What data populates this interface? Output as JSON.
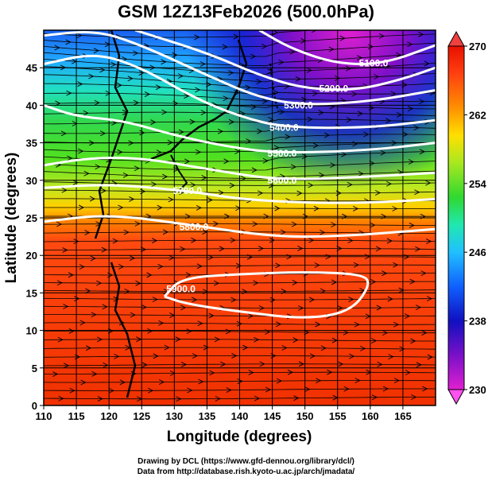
{
  "title": "GSM 12Z13Feb2026 (500.0hPa)",
  "x_axis": {
    "label": "Longitude (degrees)",
    "range": [
      110,
      170
    ],
    "ticks": [
      "110",
      "115",
      "120",
      "125",
      "130",
      "135",
      "140",
      "145",
      "150",
      "155",
      "160",
      "165"
    ]
  },
  "y_axis": {
    "label": "Latitude  (degrees)",
    "range": [
      0,
      50
    ],
    "ticks": [
      "0",
      "5",
      "10",
      "15",
      "20",
      "25",
      "30",
      "35",
      "40",
      "45"
    ]
  },
  "colorbar": {
    "range": [
      230,
      270
    ],
    "ticks": [
      "270",
      "262",
      "254",
      "246",
      "238",
      "230"
    ],
    "colors": [
      "#e020d0",
      "#7a10c8",
      "#1010c0",
      "#1060ff",
      "#20c0ff",
      "#20e8b0",
      "#30d830",
      "#a8e820",
      "#ffe000",
      "#ff9000",
      "#ff4010",
      "#e81000"
    ]
  },
  "contours": [
    {
      "level": 5100,
      "label": "5100.0",
      "label_at": [
        160.5,
        45.6
      ],
      "points": [
        [
          143,
          50
        ],
        [
          148,
          47.5
        ],
        [
          155,
          45.5
        ],
        [
          162,
          45.5
        ],
        [
          170,
          48
        ]
      ]
    },
    {
      "level": 5200,
      "label": "5200.0",
      "label_at": [
        154.4,
        42.2
      ],
      "points": [
        [
          124,
          50
        ],
        [
          135,
          47
        ],
        [
          143,
          44
        ],
        [
          150,
          42.2
        ],
        [
          158,
          42
        ],
        [
          165,
          43.5
        ],
        [
          170,
          45
        ]
      ]
    },
    {
      "level": 5300,
      "label": "5300.0",
      "label_at": [
        149,
        40
      ],
      "points": [
        [
          110,
          49.3
        ],
        [
          118,
          50
        ],
        [
          125,
          48
        ],
        [
          135,
          44
        ],
        [
          143,
          41
        ],
        [
          150,
          40
        ],
        [
          160,
          40.5
        ],
        [
          170,
          42
        ]
      ]
    },
    {
      "level": 5400,
      "label": "5400.0",
      "label_at": [
        146.8,
        37
      ],
      "points": [
        [
          110,
          45.5
        ],
        [
          118,
          47
        ],
        [
          125,
          45
        ],
        [
          133,
          41
        ],
        [
          140,
          38.5
        ],
        [
          147,
          37
        ],
        [
          160,
          37
        ],
        [
          170,
          38
        ]
      ]
    },
    {
      "level": 5500,
      "label": "5500.0",
      "label_at": [
        146.5,
        33.6
      ],
      "points": [
        [
          110,
          40
        ],
        [
          115,
          38.5
        ],
        [
          122,
          38
        ],
        [
          130,
          36
        ],
        [
          138,
          34.5
        ],
        [
          146,
          33.6
        ],
        [
          160,
          34
        ],
        [
          170,
          35
        ]
      ]
    },
    {
      "level": 5600,
      "label": "5600.0",
      "label_at": [
        146.5,
        30
      ],
      "points": [
        [
          110,
          32
        ],
        [
          117,
          33
        ],
        [
          125,
          33
        ],
        [
          135,
          31.5
        ],
        [
          146,
          30
        ],
        [
          160,
          30.5
        ],
        [
          170,
          31
        ]
      ]
    },
    {
      "level": 5700,
      "label": "5700.0",
      "label_at": [
        132,
        28.6
      ],
      "points": [
        [
          110,
          29
        ],
        [
          120,
          29.5
        ],
        [
          132,
          28.6
        ],
        [
          140,
          27.5
        ],
        [
          150,
          27
        ],
        [
          160,
          27
        ],
        [
          170,
          27.5
        ]
      ]
    },
    {
      "level": 5800,
      "label": "5800.0",
      "label_at": [
        133,
        23.8
      ],
      "points": [
        [
          110,
          24.5
        ],
        [
          120,
          25.5
        ],
        [
          133,
          24
        ],
        [
          145,
          22.5
        ],
        [
          155,
          22.5
        ],
        [
          170,
          23.5
        ]
      ]
    },
    {
      "level": 5900,
      "label": "5900.0",
      "label_at": [
        131,
        15.5
      ],
      "points": [
        [
          128.5,
          14.5
        ],
        [
          131,
          17
        ],
        [
          140,
          17.5
        ],
        [
          150,
          17.8
        ],
        [
          159,
          17.5
        ],
        [
          160,
          16
        ],
        [
          157,
          12.5
        ],
        [
          150,
          11.5
        ],
        [
          140,
          12.5
        ],
        [
          132,
          13.5
        ],
        [
          128.5,
          14.5
        ]
      ]
    }
  ],
  "credits": {
    "line1": "Drawing by DCL (https://www.gfd-dennou.org/library/dcl/)",
    "line2": "Data from http://database.rish.kyoto-u.ac.jp/arch/jmadata/"
  }
}
